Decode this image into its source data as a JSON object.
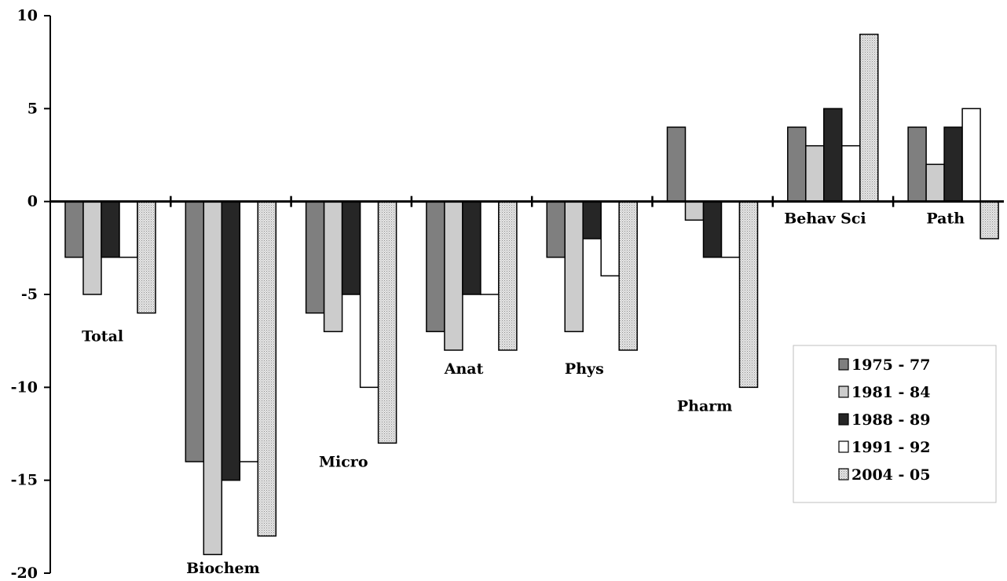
{
  "chart_data": {
    "type": "bar",
    "title": "",
    "xlabel": "",
    "ylabel": "",
    "ylim": [
      -20,
      10
    ],
    "yticks": [
      10,
      5,
      0,
      -5,
      -10,
      -15,
      -20
    ],
    "categories": [
      "Total",
      "Biochem",
      "Micro",
      "Anat",
      "Phys",
      "Pharm",
      "Behav Sci",
      "Path"
    ],
    "legend_position": "bottom-right",
    "grid": false,
    "series": [
      {
        "name": "1975 - 77",
        "color": "#7f7f7f",
        "pattern": "solid",
        "values": [
          -3,
          -14,
          -6,
          -7,
          -3,
          4,
          4,
          4
        ]
      },
      {
        "name": "1981 - 84",
        "color": "#cccccc",
        "pattern": "solid",
        "values": [
          -5,
          -19,
          -7,
          -8,
          -7,
          -1,
          3,
          2
        ]
      },
      {
        "name": "1988 - 89",
        "color": "#262626",
        "pattern": "solid",
        "values": [
          -3,
          -15,
          -5,
          -5,
          -2,
          -3,
          5,
          4
        ]
      },
      {
        "name": "1991 - 92",
        "color": "#ffffff",
        "pattern": "solid",
        "values": [
          -3,
          -14,
          -10,
          -5,
          -4,
          -3,
          3,
          5
        ]
      },
      {
        "name": "2004 - 05",
        "color": "#d4d4d4",
        "pattern": "dotted",
        "values": [
          -6,
          -18,
          -13,
          -8,
          -8,
          -10,
          9,
          -2
        ]
      }
    ]
  }
}
